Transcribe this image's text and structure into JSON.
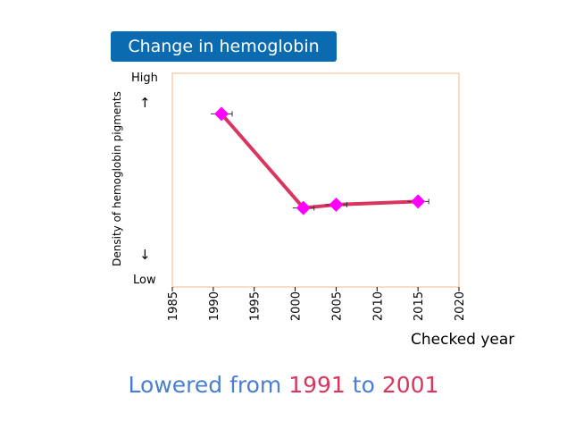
{
  "title": "Change in hemoglobin",
  "y_axis": {
    "label": "Density of hemoglobin pigments",
    "high": "High",
    "low": "Low",
    "arrow_up": "↑",
    "arrow_down": "↓"
  },
  "x_axis": {
    "label": "Checked year"
  },
  "caption": {
    "part1": "Lowered from ",
    "year1": "1991",
    "part2": " to ",
    "year2": "2001"
  },
  "colors": {
    "title_bg": "#0a6bb0",
    "frame": "#f0b88a",
    "line": "#d8365f",
    "marker": "#ff00ff",
    "caption_blue": "#4a7fd0",
    "caption_red": "#d8365f"
  },
  "chart_data": {
    "type": "line",
    "title": "Change in hemoglobin",
    "xlabel": "Checked year",
    "ylabel": "Density of hemoglobin pigments",
    "xlim": [
      1985,
      2020
    ],
    "x_ticks": [
      1985,
      1990,
      1995,
      2000,
      2005,
      2010,
      2015,
      2020
    ],
    "ylim": [
      0,
      100
    ],
    "grid": false,
    "series": [
      {
        "x": [
          1991,
          2001,
          2005,
          2015
        ],
        "y": [
          81,
          37,
          38.5,
          40
        ]
      }
    ]
  }
}
